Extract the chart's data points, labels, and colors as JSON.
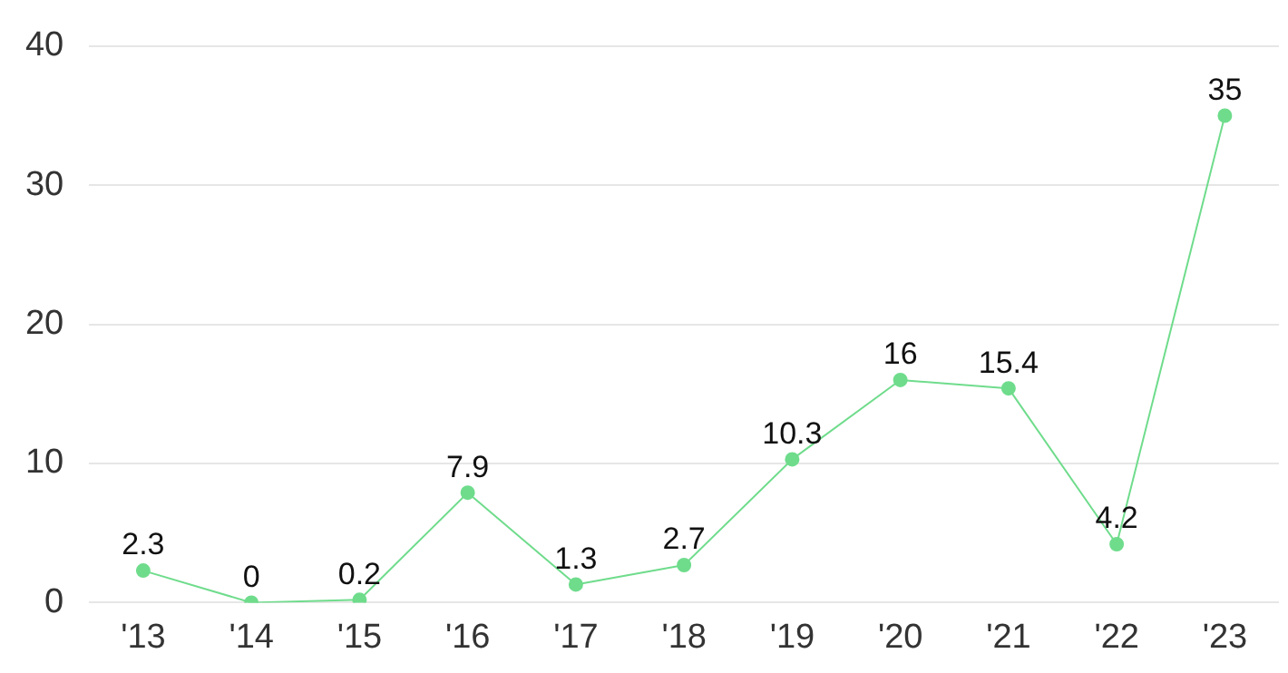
{
  "chart_data": {
    "type": "line",
    "categories": [
      "'13",
      "'14",
      "'15",
      "'16",
      "'17",
      "'18",
      "'19",
      "'20",
      "'21",
      "'22",
      "'23"
    ],
    "series": [
      {
        "color": "#6fdc8c",
        "values": [
          2.3,
          0,
          0.2,
          7.9,
          1.3,
          2.7,
          10.3,
          16,
          15.4,
          4.2,
          35
        ]
      }
    ],
    "ylim": [
      0,
      40
    ],
    "yticks": [
      0,
      10,
      20,
      30,
      40
    ],
    "grid": "y",
    "legend": false,
    "marker": "circle",
    "line_style": "solid",
    "data_labels": true
  }
}
